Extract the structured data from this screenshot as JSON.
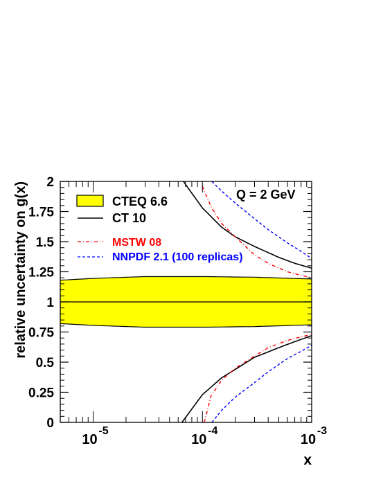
{
  "chart_data": {
    "type": "line",
    "ylabel": "relative uncertainty on g(x)",
    "xlabel": "x",
    "annotation": "Q = 2 GeV",
    "x_scale": "log",
    "xlim": [
      5e-06,
      0.001
    ],
    "ylim": [
      0,
      2
    ],
    "x_ticks": [
      {
        "value": 1e-05,
        "base": "10",
        "exp": "-5"
      },
      {
        "value": 0.0001,
        "base": "10",
        "exp": "-4"
      },
      {
        "value": 0.001,
        "base": "10",
        "exp": "-3"
      }
    ],
    "y_ticks": [
      {
        "value": 0,
        "label": "0"
      },
      {
        "value": 0.25,
        "label": "0.25"
      },
      {
        "value": 0.5,
        "label": "0.5"
      },
      {
        "value": 0.75,
        "label": "0.75"
      },
      {
        "value": 1,
        "label": "1"
      },
      {
        "value": 1.25,
        "label": "1.25"
      },
      {
        "value": 1.5,
        "label": "1.5"
      },
      {
        "value": 1.75,
        "label": "1.75"
      },
      {
        "value": 2,
        "label": "2"
      }
    ],
    "legend": [
      {
        "label": "CTEQ 6.6",
        "style": "band",
        "color": "#000000",
        "fill": "#ffff00"
      },
      {
        "label": "CT 10",
        "style": "solid",
        "color": "#000000"
      },
      {
        "label": "MSTW 08",
        "style": "dashdot",
        "color": "#ff0000"
      },
      {
        "label": "NNPDF 2.1 (100 replicas)",
        "style": "dashed",
        "color": "#0000ff"
      }
    ],
    "band": {
      "name": "CTEQ 6.6",
      "x": [
        5e-06,
        1e-05,
        3e-05,
        0.0001,
        0.0003,
        0.001
      ],
      "upper": [
        1.18,
        1.195,
        1.21,
        1.21,
        1.205,
        1.19
      ],
      "lower": [
        0.82,
        0.805,
        0.79,
        0.79,
        0.795,
        0.81
      ],
      "central": 1.0
    },
    "series": [
      {
        "name": "CT 10",
        "x": [
          6.5e-05,
          0.0001,
          0.00015,
          0.0002,
          0.0003,
          0.0005,
          0.0007,
          0.001
        ],
        "values": [
          0,
          0.23,
          0.37,
          0.44,
          0.54,
          0.62,
          0.67,
          0.72
        ]
      },
      {
        "name": "CT 10",
        "x": [
          6.7e-05,
          0.0001,
          0.00015,
          0.0002,
          0.0003,
          0.0005,
          0.0007,
          0.001
        ],
        "values": [
          2.0,
          1.78,
          1.62,
          1.54,
          1.46,
          1.37,
          1.32,
          1.28
        ]
      },
      {
        "name": "MSTW 08",
        "x": [
          0.000104,
          0.00012,
          0.00015,
          0.0002,
          0.0003,
          0.0004,
          0.0006,
          0.0008,
          0.001
        ],
        "values": [
          0,
          0.22,
          0.35,
          0.45,
          0.55,
          0.62,
          0.68,
          0.71,
          0.73
        ]
      },
      {
        "name": "MSTW 08",
        "x": [
          0.0001,
          0.00012,
          0.00015,
          0.0002,
          0.0003,
          0.0004,
          0.0006,
          0.0008,
          0.001
        ],
        "values": [
          1.96,
          1.79,
          1.65,
          1.54,
          1.39,
          1.32,
          1.25,
          1.22,
          1.2
        ]
      },
      {
        "name": "NNPDF 2.1 (100 replicas)",
        "x": [
          0.000122,
          0.00015,
          0.0002,
          0.0003,
          0.0004,
          0.0006,
          0.0008,
          0.001
        ],
        "values": [
          0,
          0.1,
          0.21,
          0.33,
          0.42,
          0.53,
          0.59,
          0.64
        ]
      },
      {
        "name": "NNPDF 2.1 (100 replicas)",
        "x": [
          0.000122,
          0.00015,
          0.0002,
          0.0003,
          0.0004,
          0.0006,
          0.0008,
          0.001
        ],
        "values": [
          2.0,
          1.92,
          1.82,
          1.69,
          1.6,
          1.49,
          1.42,
          1.36
        ]
      }
    ]
  }
}
